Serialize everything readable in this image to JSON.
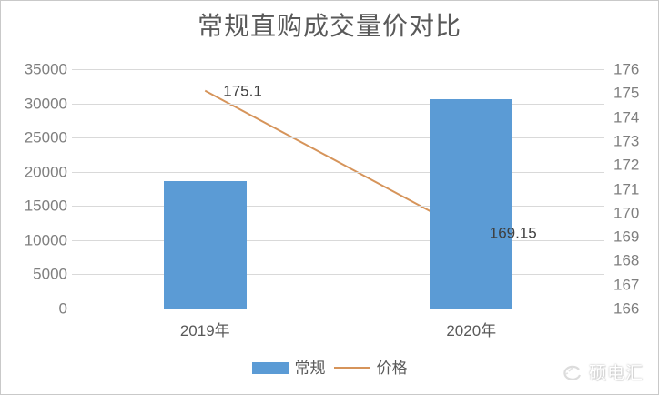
{
  "window": {
    "background": "#ffffff",
    "border_color": "#c9c9c9"
  },
  "chart_data": {
    "type": "bar",
    "subtype": "combo-bar-line-dual-axis",
    "title": "常规直购成交量价对比",
    "categories": [
      "2019年",
      "2020年"
    ],
    "series": [
      {
        "name": "常规",
        "chart": "bar",
        "axis": "left",
        "color": "#5B9BD5",
        "values": [
          18600,
          30600
        ]
      },
      {
        "name": "价格",
        "chart": "line",
        "axis": "right",
        "color": "#D6945A",
        "values": [
          175.1,
          169.15
        ],
        "point_labels": [
          "175.1",
          "169.15"
        ]
      }
    ],
    "left_axis": {
      "min": 0,
      "max": 35000,
      "step": 5000,
      "ticks": [
        "35000",
        "30000",
        "25000",
        "20000",
        "15000",
        "10000",
        "5000",
        "0"
      ]
    },
    "right_axis": {
      "min": 166,
      "max": 176,
      "step": 1,
      "ticks": [
        "176",
        "175",
        "174",
        "173",
        "172",
        "171",
        "170",
        "169",
        "168",
        "167",
        "166"
      ]
    },
    "grid": {
      "horizontal": true,
      "color": "#D9D9D9",
      "axis_line_color": "#BFBFBF"
    },
    "legend": {
      "position": "bottom",
      "items": [
        "常规",
        "价格"
      ]
    }
  },
  "watermark": {
    "icon": "swirl-logo-icon",
    "text": "硕电汇"
  }
}
